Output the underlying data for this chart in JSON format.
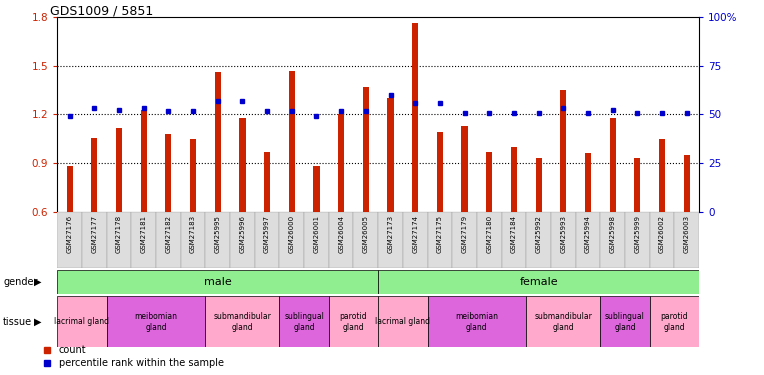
{
  "title": "GDS1009 / 5851",
  "samples": [
    "GSM27176",
    "GSM27177",
    "GSM27178",
    "GSM27181",
    "GSM27182",
    "GSM27183",
    "GSM25995",
    "GSM25996",
    "GSM25997",
    "GSM26000",
    "GSM26001",
    "GSM26004",
    "GSM26005",
    "GSM27173",
    "GSM27174",
    "GSM27175",
    "GSM27179",
    "GSM27180",
    "GSM27184",
    "GSM25992",
    "GSM25993",
    "GSM25994",
    "GSM25998",
    "GSM25999",
    "GSM26002",
    "GSM26003"
  ],
  "count_values": [
    0.885,
    1.055,
    1.115,
    1.23,
    1.08,
    1.05,
    1.46,
    1.18,
    0.97,
    1.47,
    0.88,
    1.2,
    1.37,
    1.3,
    1.76,
    1.09,
    1.13,
    0.97,
    1.0,
    0.93,
    1.35,
    0.96,
    1.18,
    0.93,
    1.05,
    0.95
  ],
  "percentile_values": [
    1.19,
    1.24,
    1.23,
    1.24,
    1.22,
    1.22,
    1.28,
    1.28,
    1.22,
    1.22,
    1.19,
    1.22,
    1.22,
    1.32,
    1.27,
    1.27,
    1.21,
    1.21,
    1.21,
    1.21,
    1.24,
    1.21,
    1.23,
    1.21,
    1.21,
    1.21
  ],
  "ylim": [
    0.6,
    1.8
  ],
  "yticks_left": [
    0.6,
    0.9,
    1.2,
    1.5,
    1.8
  ],
  "yticks_right": [
    0,
    25,
    50,
    75,
    100
  ],
  "bar_color": "#cc2200",
  "dot_color": "#0000cc",
  "tissue_groups_male": [
    {
      "label": "lacrimal gland",
      "start": 0,
      "end": 2,
      "color": "#ffaacc"
    },
    {
      "label": "meibomian\ngland",
      "start": 2,
      "end": 6,
      "color": "#dd66dd"
    },
    {
      "label": "submandibular\ngland",
      "start": 6,
      "end": 9,
      "color": "#ffaacc"
    },
    {
      "label": "sublingual\ngland",
      "start": 9,
      "end": 11,
      "color": "#dd66dd"
    },
    {
      "label": "parotid\ngland",
      "start": 11,
      "end": 13,
      "color": "#ffaacc"
    }
  ],
  "tissue_groups_female": [
    {
      "label": "lacrimal gland",
      "start": 13,
      "end": 15,
      "color": "#ffaacc"
    },
    {
      "label": "meibomian\ngland",
      "start": 15,
      "end": 19,
      "color": "#dd66dd"
    },
    {
      "label": "submandibular\ngland",
      "start": 19,
      "end": 22,
      "color": "#ffaacc"
    },
    {
      "label": "sublingual\ngland",
      "start": 22,
      "end": 24,
      "color": "#dd66dd"
    },
    {
      "label": "parotid\ngland",
      "start": 24,
      "end": 26,
      "color": "#ffaacc"
    }
  ],
  "gender_color": "#90ee90",
  "xtick_bg": "#dddddd"
}
